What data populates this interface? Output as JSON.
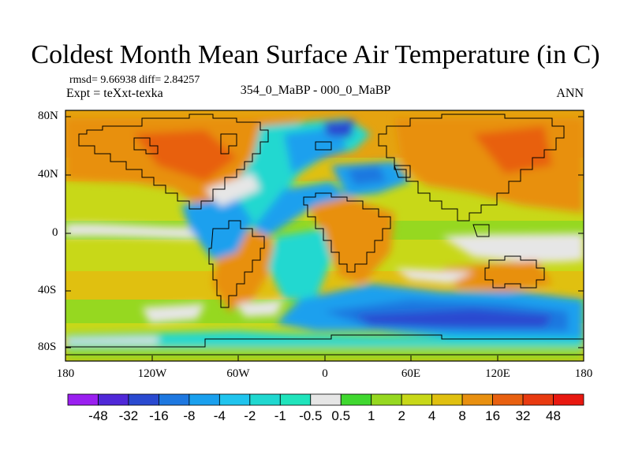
{
  "title": "Coldest Month Mean Surface Air Temperature (in C)",
  "stats_line": "rmsd= 9.66938 diff= 2.84257",
  "experiment_line": "Expt = teXxt-texka",
  "comparison_label": "354_0_MaBP - 000_0_MaBP",
  "season_label": "ANN",
  "lat_labels": [
    "80N",
    "40N",
    "0",
    "40S",
    "80S"
  ],
  "lon_labels": [
    "180",
    "120W",
    "60W",
    "0",
    "60E",
    "120E",
    "180"
  ],
  "colorbar": {
    "labels": [
      "-48",
      "-32",
      "-16",
      "-8",
      "-4",
      "-2",
      "-1",
      "-0.5",
      "0.5",
      "1",
      "2",
      "4",
      "8",
      "16",
      "32",
      "48"
    ],
    "colors": [
      "#9a1ff0",
      "#5028d8",
      "#2a4ad0",
      "#1e78e0",
      "#1aa0ee",
      "#20c4ee",
      "#20d8d0",
      "#20e4bc",
      "#e6e6e6",
      "#40d830",
      "#96d820",
      "#c8d818",
      "#e0c010",
      "#e89010",
      "#e86010",
      "#e83a10",
      "#e81810"
    ]
  }
}
